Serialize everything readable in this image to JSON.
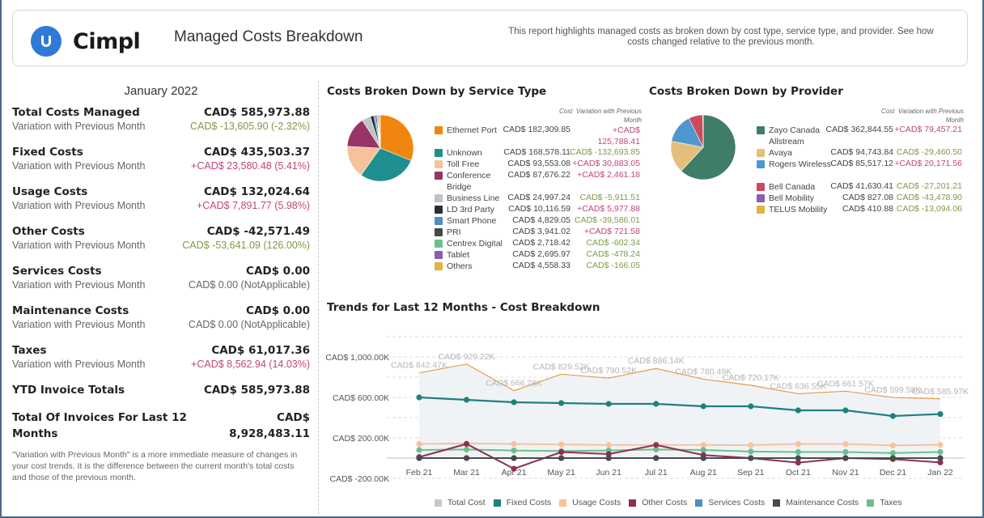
{
  "header": {
    "brand": "Cimpl",
    "logo_icon": "cimpl-logo-icon",
    "title": "Managed Costs Breakdown",
    "description": "This report highlights managed costs as broken down by cost type, service type, and provider. See how costs changed relative to the previous month."
  },
  "summary": {
    "month": "January 2022",
    "variation_label": "Variation with Previous Month",
    "metrics": [
      {
        "name": "Total Costs Managed",
        "value": "CAD$ 585,973.88",
        "variation": "CAD$ -13,605.90 (-2.32%)",
        "trend": "down"
      },
      {
        "name": "Fixed Costs",
        "value": "CAD$ 435,503.37",
        "variation": "+CAD$ 23,580.48 (5.41%)",
        "trend": "up"
      },
      {
        "name": "Usage Costs",
        "value": "CAD$ 132,024.64",
        "variation": "+CAD$ 7,891.77 (5.98%)",
        "trend": "up"
      },
      {
        "name": "Other Costs",
        "value": "CAD$ -42,571.49",
        "variation": "CAD$ -53,641.09 (126.00%)",
        "trend": "down"
      },
      {
        "name": "Services Costs",
        "value": "CAD$ 0.00",
        "variation": "CAD$ 0.00 (NotApplicable)",
        "trend": "na"
      },
      {
        "name": "Maintenance Costs",
        "value": "CAD$ 0.00",
        "variation": "CAD$ 0.00 (NotApplicable)",
        "trend": "na"
      },
      {
        "name": "Taxes",
        "value": "CAD$ 61,017.36",
        "variation": "+CAD$ 8,562.94 (14.03%)",
        "trend": "up"
      }
    ],
    "ytd_label": "YTD Invoice Totals",
    "ytd_value": "CAD$ 585,973.88",
    "last12_label": "Total Of Invoices For Last 12 Months",
    "last12_value_line1": "CAD$",
    "last12_value_line2": "8,928,483.11",
    "note": "\"Variation with Previous Month\" is a more immediate measure of changes in your cost trends. It is the difference between the current month's total costs and those of the previous month."
  },
  "colors": {
    "up": "#c2457a",
    "down": "#7f9a4b",
    "accent": "#2f7ad6"
  },
  "chart_data": [
    {
      "type": "pie",
      "title": "Costs Broken Down by Service Type",
      "col_cost": "Cost",
      "col_var": "Variation with Previous Month",
      "slices": [
        {
          "label": "Ethernet Port",
          "value": 182309.85,
          "cost": "CAD$ 182,309.85",
          "variation": "+CAD$ 125,788.41",
          "trend": "up",
          "color": "#f0860f"
        },
        {
          "label": "Unknown",
          "value": 168578.11,
          "cost": "CAD$ 168,578.11",
          "variation": "CAD$ -132,693.85",
          "trend": "down",
          "color": "#1f8f8f"
        },
        {
          "label": "Toll Free",
          "value": 93553.08,
          "cost": "CAD$ 93,553.08",
          "variation": "+CAD$ 30,883.05",
          "trend": "up",
          "color": "#f7c29b"
        },
        {
          "label": "Conference Bridge",
          "value": 87676.22,
          "cost": "CAD$ 87,676.22",
          "variation": "+CAD$ 2,461.18",
          "trend": "up",
          "color": "#993466"
        },
        {
          "label": "Business Line",
          "value": 24997.24,
          "cost": "CAD$ 24,997.24",
          "variation": "CAD$ -5,911.51",
          "trend": "down",
          "color": "#bfc3c8"
        },
        {
          "label": "LD 3rd Party",
          "value": 10116.59,
          "cost": "CAD$ 10,116.59",
          "variation": "+CAD$ 5,977.88",
          "trend": "up",
          "color": "#26313b"
        },
        {
          "label": "Smart Phone",
          "value": 4829.05,
          "cost": "CAD$ 4,829.05",
          "variation": "CAD$ -39,586.01",
          "trend": "down",
          "color": "#4a90c2"
        },
        {
          "label": "PRI",
          "value": 3941.02,
          "cost": "CAD$ 3,941.02",
          "variation": "+CAD$ 721.58",
          "trend": "up",
          "color": "#454a44"
        },
        {
          "label": "Centrex Digital",
          "value": 2718.42,
          "cost": "CAD$ 2,718.42",
          "variation": "CAD$ -602.34",
          "trend": "down",
          "color": "#6cc08e"
        },
        {
          "label": "Tablet",
          "value": 2695.97,
          "cost": "CAD$ 2,695.97",
          "variation": "CAD$ -478.24",
          "trend": "down",
          "color": "#8e5bb5"
        },
        {
          "label": "Others",
          "value": 4558.33,
          "cost": "CAD$ 4,558.33",
          "variation": "CAD$ -166.05",
          "trend": "down",
          "color": "#e0b53a"
        }
      ]
    },
    {
      "type": "pie",
      "title": "Costs Broken Down by Provider",
      "col_cost": "Cost",
      "col_var": "Variation with Previous Month",
      "slices": [
        {
          "label": "Zayo Canada Allstream",
          "value": 362844.55,
          "cost": "CAD$ 362,844.55",
          "variation": "+CAD$ 79,457.21",
          "trend": "up",
          "color": "#3f7d66"
        },
        {
          "label": "Avaya",
          "value": 94743.84,
          "cost": "CAD$ 94,743.84",
          "variation": "CAD$ -29,460.50",
          "trend": "down",
          "color": "#e4bf7b"
        },
        {
          "label": "Rogers Wireless",
          "value": 85517.12,
          "cost": "CAD$ 85,517.12",
          "variation": "+CAD$ 20,171.56",
          "trend": "up",
          "color": "#4f97cf"
        },
        {
          "label": "Bell Canada",
          "value": 41630.41,
          "cost": "CAD$ 41,630.41",
          "variation": "CAD$ -27,201.21",
          "trend": "down",
          "color": "#cc4a5e"
        },
        {
          "label": "Bell Mobility",
          "value": 827.08,
          "cost": "CAD$ 827.08",
          "variation": "CAD$ -43,478.90",
          "trend": "down",
          "color": "#8e5bb5"
        },
        {
          "label": "TELUS Mobility",
          "value": 410.88,
          "cost": "CAD$ 410.88",
          "variation": "CAD$ -13,094.06",
          "trend": "down",
          "color": "#e0b53a"
        }
      ]
    },
    {
      "type": "line",
      "title": "Trends for Last 12 Months - Cost Breakdown",
      "categories": [
        "Feb 21",
        "Mar 21",
        "Apr 21",
        "May 21",
        "Jun 21",
        "Jul 21",
        "Aug 21",
        "Sep 21",
        "Oct 21",
        "Nov 21",
        "Dec 21",
        "Jan 22"
      ],
      "ylim": [
        -200,
        1200
      ],
      "yunit": "K",
      "yticks": [
        {
          "value": 1000,
          "label": "CAD$ 1,000.00K"
        },
        {
          "value": 600,
          "label": "CAD$ 600.00K"
        },
        {
          "value": 200,
          "label": "CAD$ 200.00K"
        },
        {
          "value": -200,
          "label": "CAD$ -200.00K"
        }
      ],
      "grid": true,
      "legend": "bottom",
      "series": [
        {
          "name": "Total Cost",
          "color": "#c8c8c8",
          "line_color": "#e39b4a",
          "area": true,
          "values": [
            842.47,
            929.22,
            666.28,
            829.52,
            790.52,
            886.14,
            780.49,
            720.17,
            636.55,
            661.57,
            599.58,
            585.97
          ],
          "labels": [
            "CAD$ 842.47K",
            "CAD$ 929.22K",
            "CAD$ 666.28K",
            "CAD$ 829.52K",
            "CAD$ 790.52K",
            "CAD$ 886.14K",
            "CAD$ 780.49K",
            "CAD$ 720.17K",
            "CAD$ 636.55K",
            "CAD$ 661.57K",
            "CAD$ 599.58K",
            "CAD$ 585.97K"
          ]
        },
        {
          "name": "Fixed Costs",
          "color": "#1f8080",
          "values": [
            600,
            576,
            552,
            544,
            536,
            536,
            512,
            512,
            472,
            472,
            416,
            435.5
          ]
        },
        {
          "name": "Usage Costs",
          "color": "#f7c29b",
          "values": [
            140,
            145,
            140,
            135,
            130,
            130,
            130,
            128,
            140,
            140,
            125,
            132
          ]
        },
        {
          "name": "Other Costs",
          "color": "#8e2f55",
          "values": [
            10,
            140,
            -105,
            60,
            40,
            130,
            30,
            0,
            -45,
            0,
            -10,
            -42.57
          ]
        },
        {
          "name": "Services Costs",
          "color": "#4f8fc0",
          "values": [
            0,
            0,
            0,
            0,
            0,
            0,
            0,
            0,
            0,
            0,
            0,
            0
          ]
        },
        {
          "name": "Maintenance Costs",
          "color": "#4a4a4a",
          "values": [
            0,
            0,
            0,
            0,
            0,
            0,
            0,
            0,
            0,
            0,
            0,
            0
          ]
        },
        {
          "name": "Taxes",
          "color": "#6cbf8c",
          "values": [
            80,
            85,
            75,
            70,
            75,
            85,
            80,
            65,
            60,
            60,
            50,
            61.02
          ]
        }
      ]
    }
  ]
}
